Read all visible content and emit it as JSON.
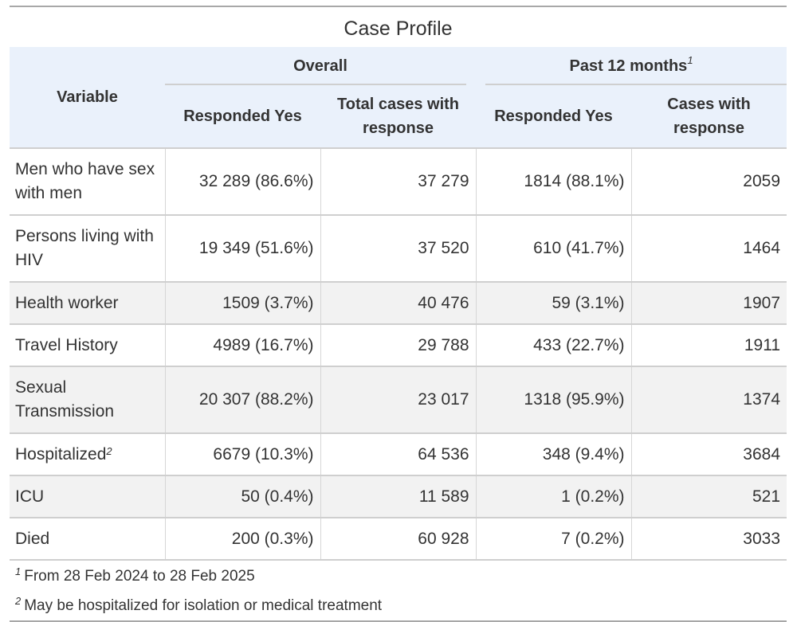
{
  "title": "Case Profile",
  "header": {
    "variable": "Variable",
    "overall": "Overall",
    "past12": "Past 12 months",
    "past12_note": "1",
    "responded_yes": "Responded Yes",
    "total_cases_with_response": "Total cases with response",
    "cases_with_response": "Cases with response"
  },
  "rows": [
    {
      "variable": "Men who have sex with men",
      "sup": "",
      "overall_yes": "32 289 (86.6%)",
      "overall_total": "37 279",
      "past_yes": "1814 (88.1%)",
      "past_total": "2059"
    },
    {
      "variable": "Persons living with HIV",
      "sup": "",
      "overall_yes": "19 349 (51.6%)",
      "overall_total": "37 520",
      "past_yes": "610 (41.7%)",
      "past_total": "1464"
    },
    {
      "variable": "Health worker",
      "sup": "",
      "overall_yes": "1509 (3.7%)",
      "overall_total": "40 476",
      "past_yes": "59 (3.1%)",
      "past_total": "1907"
    },
    {
      "variable": "Travel History",
      "sup": "",
      "overall_yes": "4989 (16.7%)",
      "overall_total": "29 788",
      "past_yes": "433 (22.7%)",
      "past_total": "1911"
    },
    {
      "variable": "Sexual Transmission",
      "sup": "",
      "overall_yes": "20 307 (88.2%)",
      "overall_total": "23 017",
      "past_yes": "1318 (95.9%)",
      "past_total": "1374"
    },
    {
      "variable": "Hospitalized",
      "sup": "2",
      "overall_yes": "6679 (10.3%)",
      "overall_total": "64 536",
      "past_yes": "348 (9.4%)",
      "past_total": "3684"
    },
    {
      "variable": "ICU",
      "sup": "",
      "overall_yes": "50 (0.4%)",
      "overall_total": "11 589",
      "past_yes": "1 (0.2%)",
      "past_total": "521"
    },
    {
      "variable": "Died",
      "sup": "",
      "overall_yes": "200 (0.3%)",
      "overall_total": "60 928",
      "past_yes": "7 (0.2%)",
      "past_total": "3033"
    }
  ],
  "footnotes": [
    {
      "mark": "1",
      "text": "From 28 Feb 2024 to 28 Feb 2025"
    },
    {
      "mark": "2",
      "text": "May be hospitalized for isolation or medical treatment"
    }
  ]
}
